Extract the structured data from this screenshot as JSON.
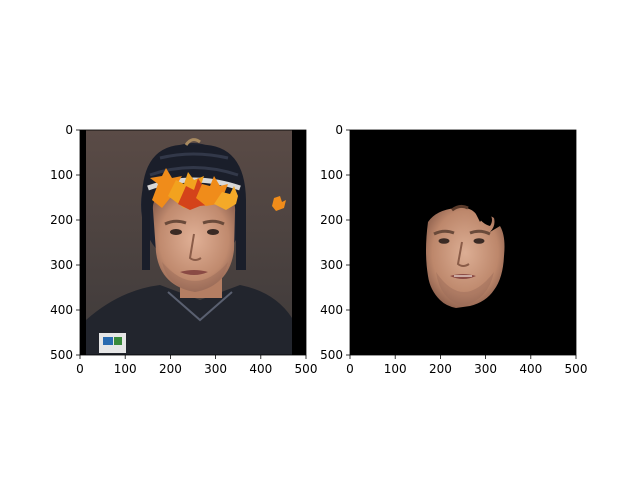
{
  "panels": [
    {
      "id": "left",
      "image": "rugby player portrait with helmet and maple leaves",
      "x_ticks": [
        "0",
        "100",
        "200",
        "300",
        "400",
        "500"
      ],
      "y_ticks": [
        "0",
        "100",
        "200",
        "300",
        "400",
        "500"
      ]
    },
    {
      "id": "right",
      "image": "segmented face mask on black background",
      "x_ticks": [
        "0",
        "100",
        "200",
        "300",
        "400",
        "500"
      ],
      "y_ticks": [
        "0",
        "100",
        "200",
        "300",
        "400",
        "500"
      ]
    }
  ],
  "colors": {
    "background": "#ffffff",
    "mask_background": "#000000",
    "leaf_orange": "#f08c1a",
    "leaf_red": "#d4431a",
    "helmet": "#1d2230",
    "skin": "#c9957a",
    "jersey": "#22252d"
  }
}
